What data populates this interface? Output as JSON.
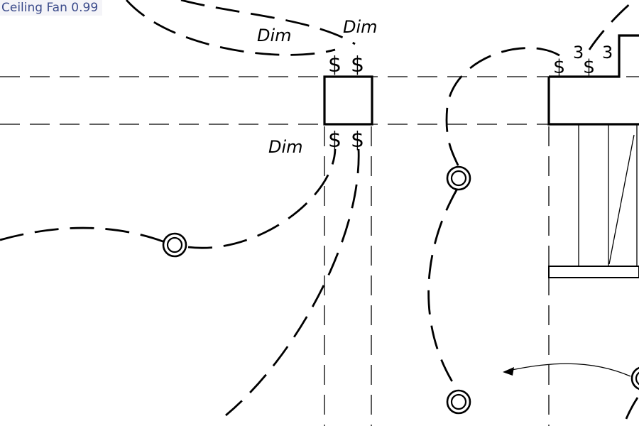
{
  "overlay": {
    "label": "Ceiling Fan",
    "score": "0.99"
  },
  "plan": {
    "labels": {
      "dim_top_left": "Dim",
      "dim_top_right": "Dim",
      "dim_lower": "Dim",
      "three_way_a": "3",
      "three_way_b": "3"
    },
    "switch_symbol": "$"
  }
}
